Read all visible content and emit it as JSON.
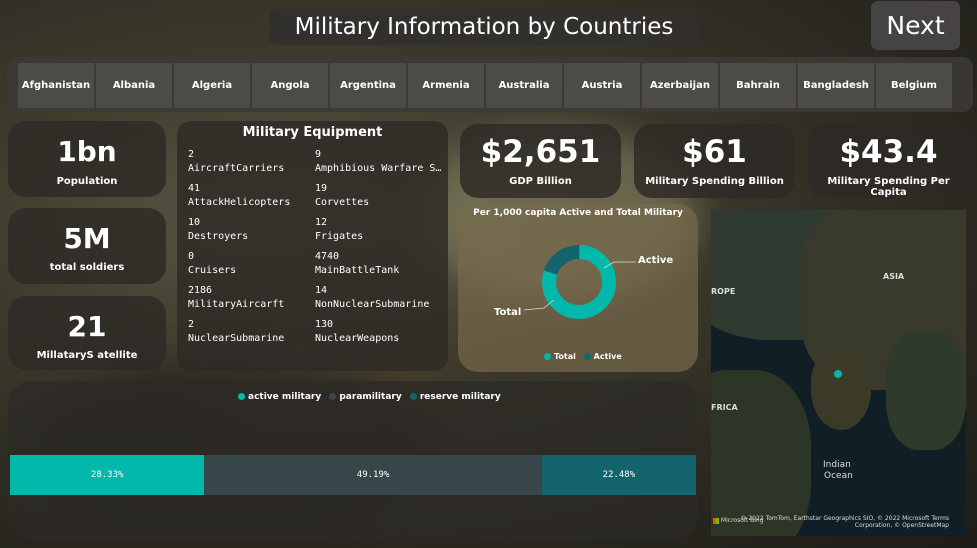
{
  "header": {
    "title": "Military Information by Countries",
    "next_label": "Next"
  },
  "countries": [
    "Afghanistan",
    "Albania",
    "Algeria",
    "Angola",
    "Argentina",
    "Armenia",
    "Australia",
    "Austria",
    "Azerbaijan",
    "Bahrain",
    "Bangladesh",
    "Belgium"
  ],
  "kpis": {
    "population": {
      "value": "1bn",
      "label": "Population"
    },
    "soldiers": {
      "value": "5M",
      "label": "total soldiers"
    },
    "satellite": {
      "value": "21",
      "label": "MillataryS atellite"
    },
    "gdp": {
      "value": "$2,651",
      "label": "GDP Billion"
    },
    "spending": {
      "value": "$61",
      "label": "Military Spending Billion"
    },
    "per_capita": {
      "value": "$43.4",
      "label": "Military Spending Per Capita"
    }
  },
  "equipment": {
    "title": "Military Equipment",
    "left": [
      {
        "value": "2",
        "name": "AircraftCarriers"
      },
      {
        "value": "41",
        "name": "AttackHelicopters"
      },
      {
        "value": "10",
        "name": "Destroyers"
      },
      {
        "value": "0",
        "name": "Cruisers"
      },
      {
        "value": "2186",
        "name": "MilitaryAircarft"
      },
      {
        "value": "2",
        "name": "NuclearSubmarine"
      }
    ],
    "right": [
      {
        "value": "9",
        "name": "Amphibious Warfare Sh..."
      },
      {
        "value": "19",
        "name": "Corvettes"
      },
      {
        "value": "12",
        "name": "Frigates"
      },
      {
        "value": "4740",
        "name": "MainBattleTank"
      },
      {
        "value": "14",
        "name": "NonNuclearSubmarine"
      },
      {
        "value": "130",
        "name": "NuclearWeapons"
      }
    ]
  },
  "donut": {
    "title": "Per 1,000 capita Active  and Total Military",
    "label_active": "Active",
    "label_total": "Total",
    "legend_total": "Total",
    "legend_active": "Active"
  },
  "bar_legend": {
    "active": "active military",
    "para": "paramilitary",
    "reserve": "reserve military"
  },
  "map": {
    "labels": {
      "asia": "ASIA",
      "europe": "ROPE",
      "africa": "FRICA",
      "ocean1": "Indian",
      "ocean2": "Ocean"
    },
    "attribution": "© 2022 TomTom, Earthstar Geographics SIO, © 2022 Microsoft Terms Corporation, © OpenStreetMap",
    "bing": "Microsoft Bing"
  },
  "colors": {
    "teal": "#01b8aa",
    "dark_teal": "#13646c",
    "slate": "#374649"
  },
  "chart_data": [
    {
      "type": "pie",
      "title": "Per 1,000 capita Active  and Total Military",
      "categories": [
        "Total",
        "Active"
      ],
      "values": [
        80,
        20
      ]
    },
    {
      "type": "bar",
      "categories": [
        "active military",
        "paramilitary",
        "reserve military"
      ],
      "values": [
        28.33,
        49.19,
        22.48
      ],
      "data_labels": [
        "28.33%",
        "49.19%",
        "22.48%"
      ]
    }
  ]
}
